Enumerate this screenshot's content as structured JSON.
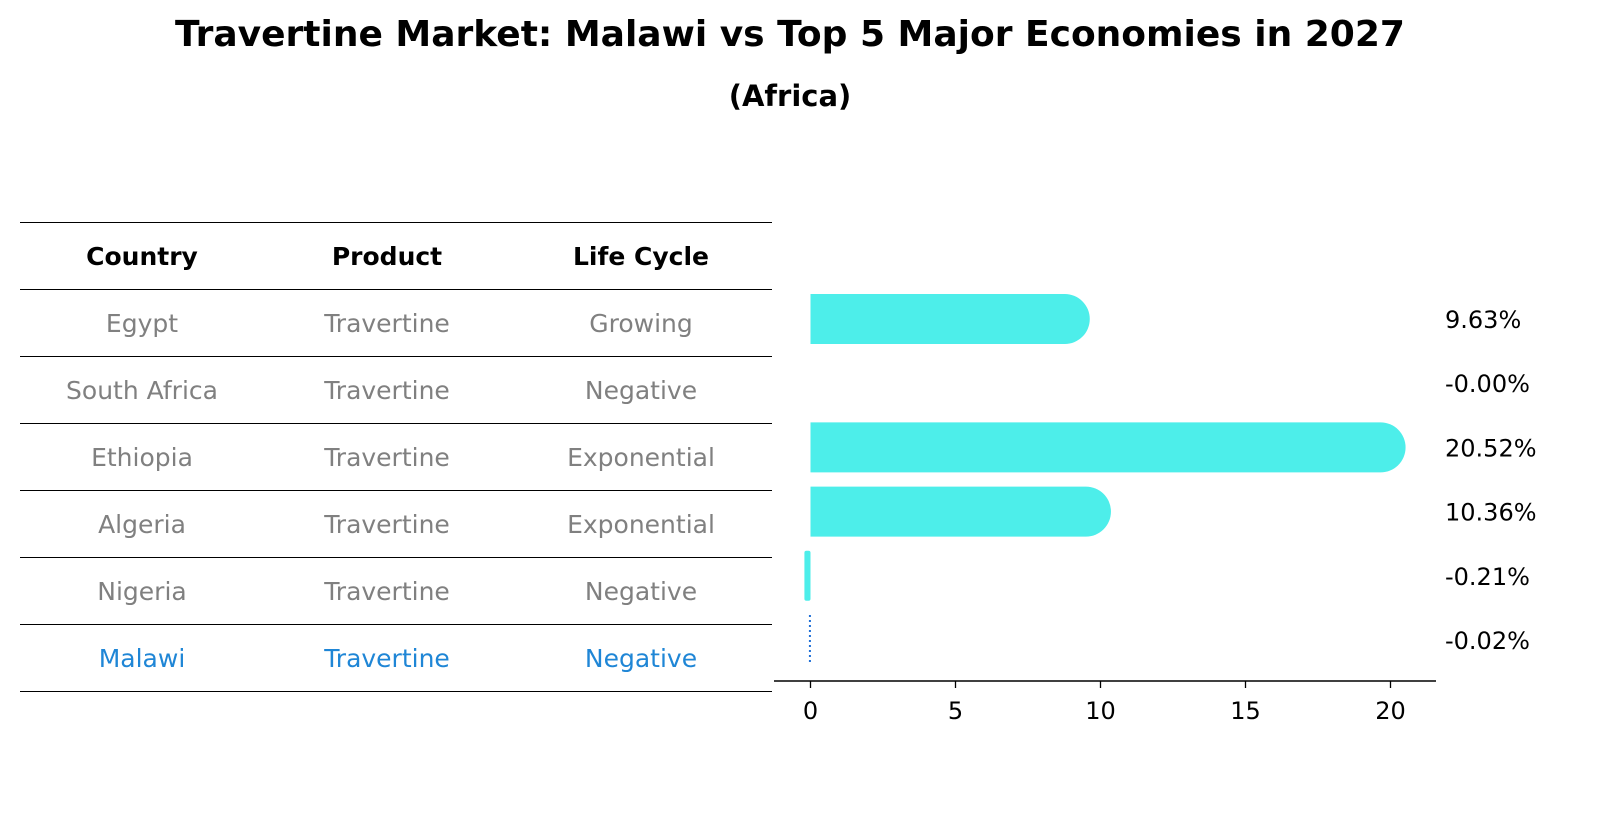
{
  "header": {
    "title": "Travertine Market: Malawi vs Top 5 Major Economies in 2027",
    "subtitle": "(Africa)"
  },
  "table": {
    "columns": [
      "Country",
      "Product",
      "Life Cycle"
    ],
    "rows": [
      {
        "country": "Egypt",
        "product": "Travertine",
        "life_cycle": "Growing"
      },
      {
        "country": "South Africa",
        "product": "Travertine",
        "life_cycle": "Negative"
      },
      {
        "country": "Ethiopia",
        "product": "Travertine",
        "life_cycle": "Exponential"
      },
      {
        "country": "Algeria",
        "product": "Travertine",
        "life_cycle": "Exponential"
      },
      {
        "country": "Nigeria",
        "product": "Travertine",
        "life_cycle": "Negative"
      },
      {
        "country": "Malawi",
        "product": "Travertine",
        "life_cycle": "Negative"
      }
    ],
    "highlight_row": "Malawi",
    "highlight_color": "#1f86d6",
    "text_color": "#808080"
  },
  "chart_data": {
    "type": "bar",
    "orientation": "horizontal",
    "categories": [
      "Egypt",
      "South Africa",
      "Ethiopia",
      "Algeria",
      "Nigeria",
      "Malawi"
    ],
    "values": [
      9.63,
      -0.0,
      20.52,
      10.36,
      -0.21,
      -0.02
    ],
    "value_labels": [
      "9.63%",
      "-0.00%",
      "20.52%",
      "10.36%",
      "-0.21%",
      "-0.02%"
    ],
    "xticks": [
      0,
      5,
      10,
      15,
      20
    ],
    "xlim": [
      -1.3,
      21.5
    ],
    "bar_color": "#4deeea",
    "highlight_color": "#1f6fd6",
    "highlight_category": "Malawi",
    "grid": false
  }
}
